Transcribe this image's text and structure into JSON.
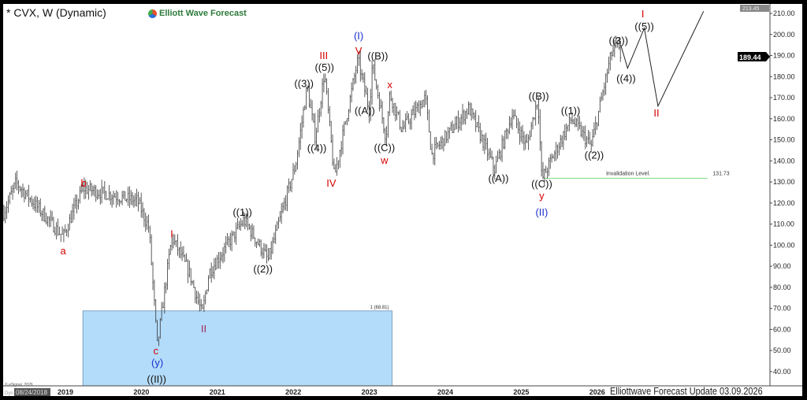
{
  "header": {
    "title": "* CVX, W (Dynamic)",
    "brand": "Elliott Wave Forecast"
  },
  "footer": {
    "text": "Elliottwave Forecast  Update 03.09.2026",
    "copyright": "© eSignal, 2026",
    "start_date": "08/24/2018",
    "dyn": "Dyn"
  },
  "colors": {
    "bars": "#333333",
    "red": "#d40000",
    "blue": "#1a2fcc",
    "maroon": "#a0285a",
    "box": "#b3dcfb",
    "invalidation": "#8fe08f",
    "projection": "#222222"
  },
  "chart_data": {
    "type": "line",
    "title": "* CVX, W (Dynamic)",
    "xlim": [
      2018.2,
      2028.25
    ],
    "ylim": [
      30,
      213.45
    ],
    "x_ticks": [
      "2019",
      "2020",
      "2021",
      "2022",
      "2023",
      "2024",
      "2025",
      "2026"
    ],
    "y_ticks": [
      "40.00",
      "50.00",
      "60.00",
      "70.00",
      "80.00",
      "90.00",
      "100.00",
      "110.00",
      "120.00",
      "130.00",
      "140.00",
      "150.00",
      "160.00",
      "170.00",
      "180.00",
      "190.00",
      "200.00",
      "210.00"
    ],
    "last_price": "189.44",
    "axis_max": "213.45",
    "price_path": [
      [
        2018.19,
        115.5
      ],
      [
        2018.35,
        129.7
      ],
      [
        2018.97,
        104
      ],
      [
        2019.23,
        127
      ],
      [
        2019.95,
        121
      ],
      [
        2020.1,
        108
      ],
      [
        2020.21,
        52
      ],
      [
        2020.4,
        104
      ],
      [
        2020.63,
        87
      ],
      [
        2020.8,
        67
      ],
      [
        2020.89,
        87
      ],
      [
        2021.35,
        112
      ],
      [
        2021.67,
        93
      ],
      [
        2022.03,
        138
      ],
      [
        2022.18,
        175
      ],
      [
        2022.29,
        151
      ],
      [
        2022.41,
        182
      ],
      [
        2022.54,
        132
      ],
      [
        2022.85,
        188
      ],
      [
        2023.0,
        164
      ],
      [
        2023.04,
        186
      ],
      [
        2023.22,
        151
      ],
      [
        2023.27,
        172
      ],
      [
        2023.43,
        155
      ],
      [
        2023.74,
        170
      ],
      [
        2023.82,
        143
      ],
      [
        2024.31,
        165
      ],
      [
        2024.65,
        136
      ],
      [
        2024.88,
        162
      ],
      [
        2025.07,
        147
      ],
      [
        2025.22,
        170
      ],
      [
        2025.27,
        131
      ],
      [
        2025.66,
        160
      ],
      [
        2025.92,
        147
      ],
      [
        2026.18,
        190
      ],
      [
        2026.25,
        195
      ],
      [
        2026.31,
        189.44
      ]
    ],
    "projection": [
      [
        2026.31,
        195
      ],
      [
        2026.4,
        184
      ],
      [
        2026.62,
        203
      ],
      [
        2026.8,
        166
      ],
      [
        2027.4,
        211
      ]
    ],
    "support_box": {
      "label": "1 (68.81)",
      "top": 68.81,
      "x_from": 2019.23,
      "x_to": 2023.3
    },
    "invalidation": {
      "label": "Invalidation Level.",
      "value": "131.73",
      "price": 131.73,
      "x_from": 2025.3,
      "x_to": 2027.45
    },
    "wave_labels": [
      {
        "t": "a",
        "x": 2018.97,
        "y": 97.6,
        "c": "red"
      },
      {
        "t": "b",
        "x": 2019.24,
        "y": 129.7,
        "c": "red"
      },
      {
        "t": "I",
        "x": 2020.4,
        "y": 105.6,
        "c": "red"
      },
      {
        "t": "II",
        "x": 2020.82,
        "y": 60.6,
        "c": "maroon"
      },
      {
        "t": "c",
        "x": 2020.19,
        "y": 48.6,
        "c": "red"
      },
      {
        "t": "(y)",
        "x": 2020.21,
        "y": 43.3,
        "c": "blue"
      },
      {
        "t": "((II))",
        "x": 2020.2,
        "y": 36.6,
        "c": "black"
      },
      {
        "t": "((1))",
        "x": 2021.33,
        "y": 115.8,
        "c": "black"
      },
      {
        "t": "((2))",
        "x": 2021.6,
        "y": 88.9,
        "c": "black"
      },
      {
        "t": "((3))",
        "x": 2022.14,
        "y": 177,
        "c": "black"
      },
      {
        "t": "III",
        "x": 2022.4,
        "y": 190.2,
        "c": "red"
      },
      {
        "t": "((5))",
        "x": 2022.41,
        "y": 184.6,
        "c": "black"
      },
      {
        "t": "((4))",
        "x": 2022.31,
        "y": 146.3,
        "c": "black"
      },
      {
        "t": "IV",
        "x": 2022.5,
        "y": 129.7,
        "c": "red"
      },
      {
        "t": "(I)",
        "x": 2022.86,
        "y": 199.5,
        "c": "blue"
      },
      {
        "t": "V",
        "x": 2022.86,
        "y": 192.4,
        "c": "red"
      },
      {
        "t": "((B))",
        "x": 2023.05,
        "y": 190,
        "c": "black"
      },
      {
        "t": "((A))",
        "x": 2022.94,
        "y": 164,
        "c": "black"
      },
      {
        "t": "x",
        "x": 2023.27,
        "y": 176.4,
        "c": "red"
      },
      {
        "t": "((C))",
        "x": 2023.2,
        "y": 146.5,
        "c": "black"
      },
      {
        "t": "w",
        "x": 2023.2,
        "y": 142.4,
        "c": "red"
      },
      {
        "t": "((A))",
        "x": 2024.7,
        "y": 131.9,
        "c": "black"
      },
      {
        "t": "((B))",
        "x": 2025.23,
        "y": 171,
        "c": "black"
      },
      {
        "t": "((C))",
        "x": 2025.27,
        "y": 128.5,
        "c": "black"
      },
      {
        "t": "y",
        "x": 2025.27,
        "y": 124.4,
        "c": "red"
      },
      {
        "t": "(II)",
        "x": 2025.27,
        "y": 117.7,
        "c": "blue"
      },
      {
        "t": "((1))",
        "x": 2025.65,
        "y": 164,
        "c": "black"
      },
      {
        "t": "((2))",
        "x": 2025.96,
        "y": 143,
        "c": "black"
      },
      {
        "t": "((3))",
        "x": 2026.28,
        "y": 197.3,
        "c": "black"
      },
      {
        "t": "((4))",
        "x": 2026.38,
        "y": 179.4,
        "c": "black"
      },
      {
        "t": "((5))",
        "x": 2026.62,
        "y": 204,
        "c": "black"
      },
      {
        "t": "I",
        "x": 2026.6,
        "y": 210,
        "c": "red"
      },
      {
        "t": "II",
        "x": 2026.78,
        "y": 163,
        "c": "red"
      }
    ]
  }
}
